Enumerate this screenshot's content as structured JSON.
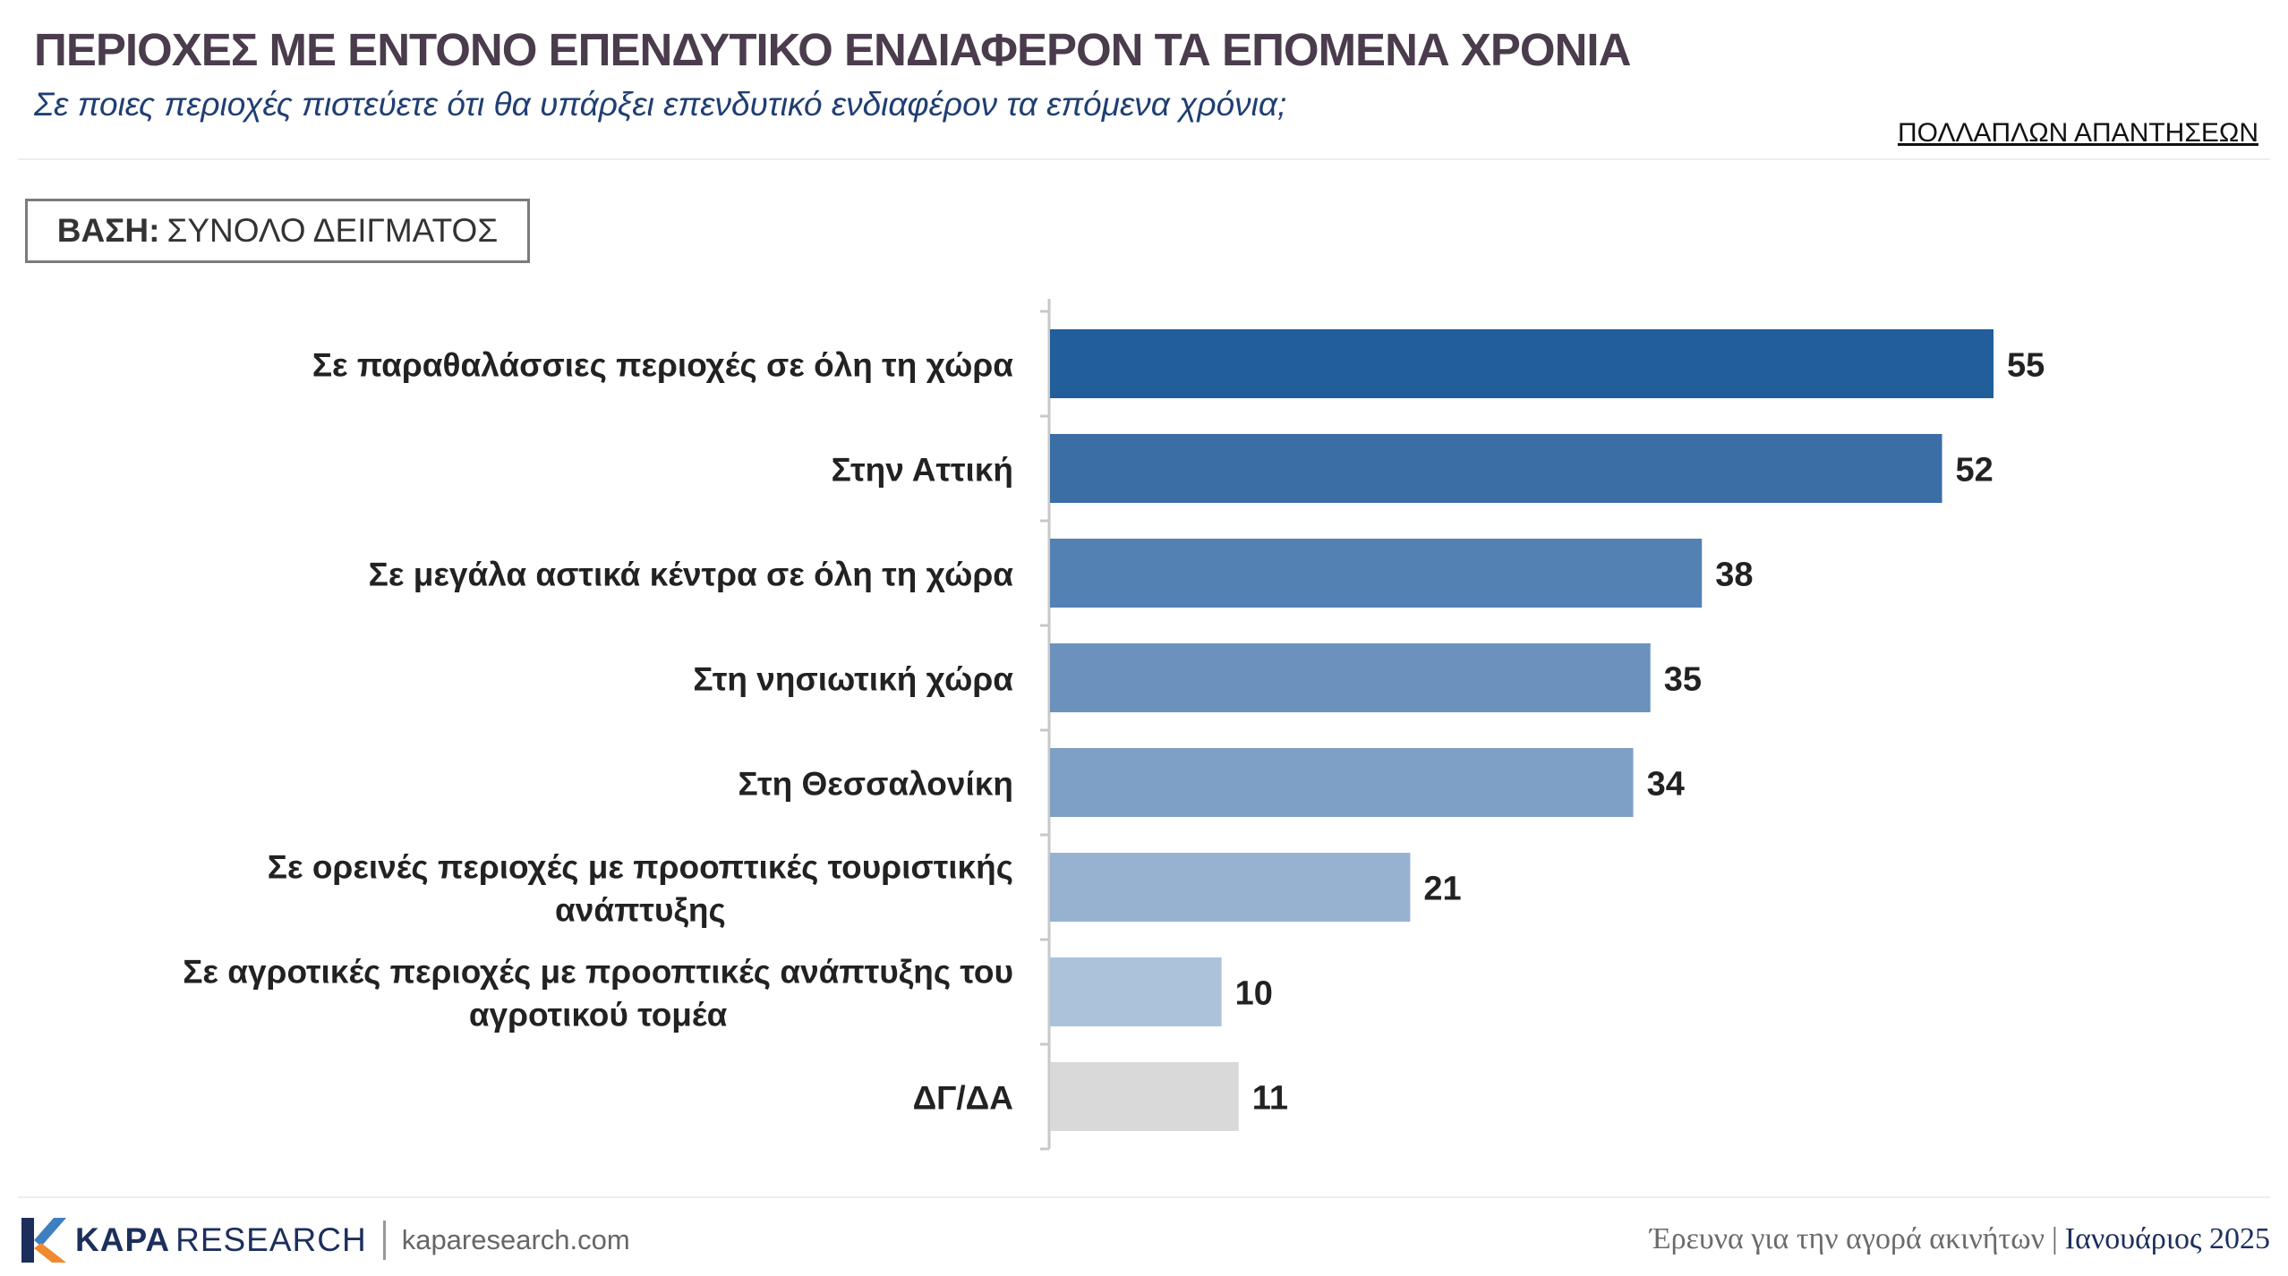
{
  "header": {
    "title": "ΠΕΡΙΟΧΕΣ ΜΕ ΕΝΤΟΝΟ ΕΠΕΝΔΥΤΙΚΟ ΕΝΔΙΑΦΕΡΟΝ ΤΑ ΕΠΟΜΕΝΑ ΧΡΟΝΙΑ",
    "subtitle": "Σε ποιες περιοχές πιστεύετε ότι θα υπάρξει επενδυτικό ενδιαφέρον τα επόμενα χρόνια;",
    "answer_type": "ΠΟΛΛΑΠΛΩΝ ΑΠΑΝΤΗΣΕΩΝ"
  },
  "base": {
    "label": "ΒΑΣΗ:",
    "value": "ΣΥΝΟΛΟ ΔΕΙΓΜΑΤΟΣ"
  },
  "chart_data": {
    "type": "bar",
    "orientation": "horizontal",
    "categories": [
      [
        "Σε παραθαλάσσιες περιοχές σε όλη τη χώρα"
      ],
      [
        "Στην Αττική"
      ],
      [
        "Σε μεγάλα αστικά κέντρα σε όλη τη χώρα"
      ],
      [
        "Στη νησιωτική χώρα"
      ],
      [
        "Στη Θεσσαλονίκη"
      ],
      [
        "Σε ορεινές περιοχές με προοπτικές τουριστικής",
        "ανάπτυξης"
      ],
      [
        "Σε αγροτικές περιοχές με προοπτικές ανάπτυξης του",
        "αγροτικού τομέα"
      ],
      [
        "ΔΓ/ΔΑ"
      ]
    ],
    "values": [
      55,
      52,
      38,
      35,
      34,
      21,
      10,
      11
    ],
    "colors": [
      "#215e9a",
      "#3a6ea4",
      "#5381b3",
      "#6b92bd",
      "#7fa0c6",
      "#97b2d1",
      "#acc2db",
      "#d9d9d9"
    ],
    "xlim": [
      0,
      55
    ],
    "grid": false,
    "value_labels": true
  },
  "footer": {
    "brand_bold": "KAPA",
    "brand_light": "RESEARCH",
    "url": "kaparesearch.com",
    "survey": "Έρευνα για την αγορά ακινήτων",
    "separator": "|",
    "date": "Ιανουάριος 2025",
    "logo_colors": [
      "#1c2f5c",
      "#3d7fc1",
      "#f08a2e"
    ]
  }
}
